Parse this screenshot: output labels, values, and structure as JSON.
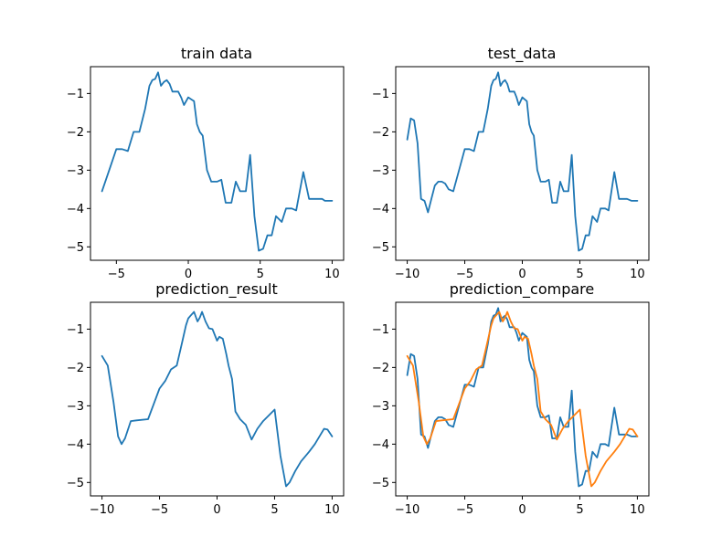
{
  "figure": {
    "background": "#ffffff"
  },
  "colors": {
    "blue": "#1f77b4",
    "orange": "#ff7f0e"
  },
  "chart_data": [
    {
      "type": "line",
      "title": "train data",
      "xlabel": "",
      "ylabel": "",
      "xlim": [
        -6.8,
        10.8
      ],
      "ylim": [
        -5.35,
        -0.3
      ],
      "xticks": [
        -5,
        0,
        5,
        10
      ],
      "xtick_labels": [
        "−5",
        "0",
        "5",
        "10"
      ],
      "yticks": [
        -1,
        -2,
        -3,
        -4,
        -5
      ],
      "ytick_labels": [
        "−1",
        "−2",
        "−3",
        "−4",
        "−5"
      ],
      "grid": false,
      "series": [
        {
          "color": "#1f77b4",
          "x": [
            -6,
            -5.5,
            -5,
            -4.6,
            -4.2,
            -3.8,
            -3.4,
            -3,
            -2.7,
            -2.5,
            -2.3,
            -2.1,
            -1.9,
            -1.7,
            -1.5,
            -1.3,
            -1.1,
            -0.9,
            -0.7,
            -0.5,
            -0.3,
            0,
            0.2,
            0.4,
            0.6,
            0.8,
            1,
            1.3,
            1.6,
            2,
            2.3,
            2.6,
            3,
            3.3,
            3.6,
            4,
            4.3,
            4.6,
            4.9,
            5.2,
            5.5,
            5.8,
            6.1,
            6.5,
            6.8,
            7.2,
            7.5,
            8,
            8.4,
            8.8,
            9.1,
            9.3,
            9.5,
            9.8,
            10
          ],
          "y": [
            -3.55,
            -3.0,
            -2.45,
            -2.45,
            -2.5,
            -2.0,
            -2.0,
            -1.4,
            -0.8,
            -0.65,
            -0.62,
            -0.45,
            -0.8,
            -0.7,
            -0.65,
            -0.75,
            -0.95,
            -0.95,
            -0.95,
            -1.1,
            -1.3,
            -1.1,
            -1.15,
            -1.2,
            -1.8,
            -2.0,
            -2.1,
            -3.0,
            -3.3,
            -3.3,
            -3.25,
            -3.85,
            -3.85,
            -3.3,
            -3.55,
            -3.55,
            -2.6,
            -4.2,
            -5.1,
            -5.05,
            -4.7,
            -4.7,
            -4.2,
            -4.35,
            -4.0,
            -4.0,
            -4.05,
            -3.05,
            -3.75,
            -3.75,
            -3.75,
            -3.75,
            -3.8,
            -3.8,
            -3.8
          ]
        }
      ]
    },
    {
      "type": "line",
      "title": "test_data",
      "xlabel": "",
      "ylabel": "",
      "xlim": [
        -11,
        11
      ],
      "ylim": [
        -5.35,
        -0.3
      ],
      "xticks": [
        -10,
        -5,
        0,
        5,
        10
      ],
      "xtick_labels": [
        "−10",
        "−5",
        "0",
        "5",
        "10"
      ],
      "yticks": [
        -1,
        -2,
        -3,
        -4,
        -5
      ],
      "ytick_labels": [
        "−1",
        "−2",
        "−3",
        "−4",
        "−5"
      ],
      "grid": false,
      "series": [
        {
          "color": "#1f77b4",
          "x": [
            -10,
            -9.7,
            -9.4,
            -9.1,
            -8.8,
            -8.5,
            -8.2,
            -7.9,
            -7.6,
            -7.3,
            -7,
            -6.7,
            -6.4,
            -6,
            -5.5,
            -5,
            -4.6,
            -4.2,
            -3.8,
            -3.4,
            -3,
            -2.7,
            -2.5,
            -2.3,
            -2.1,
            -1.9,
            -1.7,
            -1.5,
            -1.3,
            -1.1,
            -0.9,
            -0.7,
            -0.5,
            -0.3,
            0,
            0.2,
            0.4,
            0.6,
            0.8,
            1,
            1.3,
            1.6,
            2,
            2.3,
            2.6,
            3,
            3.3,
            3.6,
            4,
            4.3,
            4.6,
            4.9,
            5.2,
            5.5,
            5.8,
            6.1,
            6.5,
            6.8,
            7.2,
            7.5,
            8,
            8.4,
            8.8,
            9.1,
            9.5,
            9.8,
            10
          ],
          "y": [
            -2.2,
            -1.65,
            -1.7,
            -2.3,
            -3.75,
            -3.8,
            -4.1,
            -3.75,
            -3.4,
            -3.3,
            -3.3,
            -3.35,
            -3.5,
            -3.55,
            -3.0,
            -2.45,
            -2.45,
            -2.5,
            -2.0,
            -2.0,
            -1.4,
            -0.8,
            -0.65,
            -0.62,
            -0.45,
            -0.8,
            -0.7,
            -0.65,
            -0.75,
            -0.95,
            -0.95,
            -0.95,
            -1.1,
            -1.3,
            -1.1,
            -1.15,
            -1.2,
            -1.8,
            -2.0,
            -2.1,
            -3.0,
            -3.3,
            -3.3,
            -3.25,
            -3.85,
            -3.85,
            -3.3,
            -3.55,
            -3.55,
            -2.6,
            -4.2,
            -5.1,
            -5.05,
            -4.7,
            -4.7,
            -4.2,
            -4.35,
            -4.0,
            -4.0,
            -4.05,
            -3.05,
            -3.75,
            -3.75,
            -3.75,
            -3.8,
            -3.8,
            -3.8
          ]
        }
      ]
    },
    {
      "type": "line",
      "title": "prediction_result",
      "xlabel": "",
      "ylabel": "",
      "xlim": [
        -11,
        11
      ],
      "ylim": [
        -5.35,
        -0.3
      ],
      "xticks": [
        -10,
        -5,
        0,
        5,
        10
      ],
      "xtick_labels": [
        "−10",
        "−5",
        "0",
        "5",
        "10"
      ],
      "yticks": [
        -1,
        -2,
        -3,
        -4,
        -5
      ],
      "ytick_labels": [
        "−1",
        "−2",
        "−3",
        "−4",
        "−5"
      ],
      "grid": false,
      "series": [
        {
          "color": "#1f77b4",
          "x": [
            -10,
            -9.5,
            -9,
            -8.6,
            -8.3,
            -8,
            -7.5,
            -7,
            -6,
            -5.5,
            -5,
            -4.5,
            -4,
            -3.5,
            -3,
            -2.7,
            -2.5,
            -2.3,
            -2,
            -1.7,
            -1.5,
            -1.3,
            -1,
            -0.7,
            -0.4,
            0,
            0.2,
            0.5,
            0.8,
            1,
            1.3,
            1.6,
            2,
            2.5,
            3,
            3.5,
            4,
            5,
            5.5,
            6,
            6.3,
            6.8,
            7.3,
            8,
            8.5,
            9,
            9.3,
            9.6,
            10
          ],
          "y": [
            -1.7,
            -1.95,
            -2.9,
            -3.8,
            -4.0,
            -3.85,
            -3.4,
            -3.38,
            -3.35,
            -2.95,
            -2.55,
            -2.35,
            -2.05,
            -1.95,
            -1.3,
            -0.9,
            -0.72,
            -0.65,
            -0.55,
            -0.8,
            -0.7,
            -0.55,
            -0.8,
            -0.98,
            -1.0,
            -1.3,
            -1.2,
            -1.25,
            -1.65,
            -1.95,
            -2.3,
            -3.15,
            -3.35,
            -3.5,
            -3.88,
            -3.6,
            -3.4,
            -3.1,
            -4.3,
            -5.1,
            -5.0,
            -4.7,
            -4.45,
            -4.2,
            -4.0,
            -3.75,
            -3.6,
            -3.62,
            -3.8
          ]
        }
      ]
    },
    {
      "type": "line",
      "title": "prediction_compare",
      "xlabel": "",
      "ylabel": "",
      "xlim": [
        -11,
        11
      ],
      "ylim": [
        -5.35,
        -0.3
      ],
      "xticks": [
        -10,
        -5,
        0,
        5,
        10
      ],
      "xtick_labels": [
        "−10",
        "−5",
        "0",
        "5",
        "10"
      ],
      "yticks": [
        -1,
        -2,
        -3,
        -4,
        -5
      ],
      "ytick_labels": [
        "−1",
        "−2",
        "−3",
        "−4",
        "−5"
      ],
      "grid": false,
      "series": [
        {
          "color": "#1f77b4",
          "x": [
            -10,
            -9.7,
            -9.4,
            -9.1,
            -8.8,
            -8.5,
            -8.2,
            -7.9,
            -7.6,
            -7.3,
            -7,
            -6.7,
            -6.4,
            -6,
            -5.5,
            -5,
            -4.6,
            -4.2,
            -3.8,
            -3.4,
            -3,
            -2.7,
            -2.5,
            -2.3,
            -2.1,
            -1.9,
            -1.7,
            -1.5,
            -1.3,
            -1.1,
            -0.9,
            -0.7,
            -0.5,
            -0.3,
            0,
            0.2,
            0.4,
            0.6,
            0.8,
            1,
            1.3,
            1.6,
            2,
            2.3,
            2.6,
            3,
            3.3,
            3.6,
            4,
            4.3,
            4.6,
            4.9,
            5.2,
            5.5,
            5.8,
            6.1,
            6.5,
            6.8,
            7.2,
            7.5,
            8,
            8.4,
            8.8,
            9.1,
            9.5,
            9.8,
            10
          ],
          "y": [
            -2.2,
            -1.65,
            -1.7,
            -2.3,
            -3.75,
            -3.8,
            -4.1,
            -3.75,
            -3.4,
            -3.3,
            -3.3,
            -3.35,
            -3.5,
            -3.55,
            -3.0,
            -2.45,
            -2.45,
            -2.5,
            -2.0,
            -2.0,
            -1.4,
            -0.8,
            -0.65,
            -0.62,
            -0.45,
            -0.8,
            -0.7,
            -0.65,
            -0.75,
            -0.95,
            -0.95,
            -0.95,
            -1.1,
            -1.3,
            -1.1,
            -1.15,
            -1.2,
            -1.8,
            -2.0,
            -2.1,
            -3.0,
            -3.3,
            -3.3,
            -3.25,
            -3.85,
            -3.85,
            -3.3,
            -3.55,
            -3.55,
            -2.6,
            -4.2,
            -5.1,
            -5.05,
            -4.7,
            -4.7,
            -4.2,
            -4.35,
            -4.0,
            -4.0,
            -4.05,
            -3.05,
            -3.75,
            -3.75,
            -3.75,
            -3.8,
            -3.8,
            -3.8
          ]
        },
        {
          "color": "#ff7f0e",
          "x": [
            -10,
            -9.5,
            -9,
            -8.6,
            -8.3,
            -8,
            -7.5,
            -7,
            -6,
            -5.5,
            -5,
            -4.5,
            -4,
            -3.5,
            -3,
            -2.7,
            -2.5,
            -2.3,
            -2,
            -1.7,
            -1.5,
            -1.3,
            -1,
            -0.7,
            -0.4,
            0,
            0.2,
            0.5,
            0.8,
            1,
            1.3,
            1.6,
            2,
            2.5,
            3,
            3.5,
            4,
            5,
            5.5,
            6,
            6.3,
            6.8,
            7.3,
            8,
            8.5,
            9,
            9.3,
            9.6,
            10
          ],
          "y": [
            -1.7,
            -1.95,
            -2.9,
            -3.8,
            -4.0,
            -3.85,
            -3.4,
            -3.38,
            -3.35,
            -2.95,
            -2.55,
            -2.35,
            -2.05,
            -1.95,
            -1.3,
            -0.9,
            -0.72,
            -0.65,
            -0.55,
            -0.8,
            -0.7,
            -0.55,
            -0.8,
            -0.98,
            -1.0,
            -1.3,
            -1.2,
            -1.25,
            -1.65,
            -1.95,
            -2.3,
            -3.15,
            -3.35,
            -3.5,
            -3.88,
            -3.6,
            -3.4,
            -3.1,
            -4.3,
            -5.1,
            -5.0,
            -4.7,
            -4.45,
            -4.2,
            -4.0,
            -3.75,
            -3.6,
            -3.62,
            -3.8
          ]
        }
      ]
    }
  ]
}
